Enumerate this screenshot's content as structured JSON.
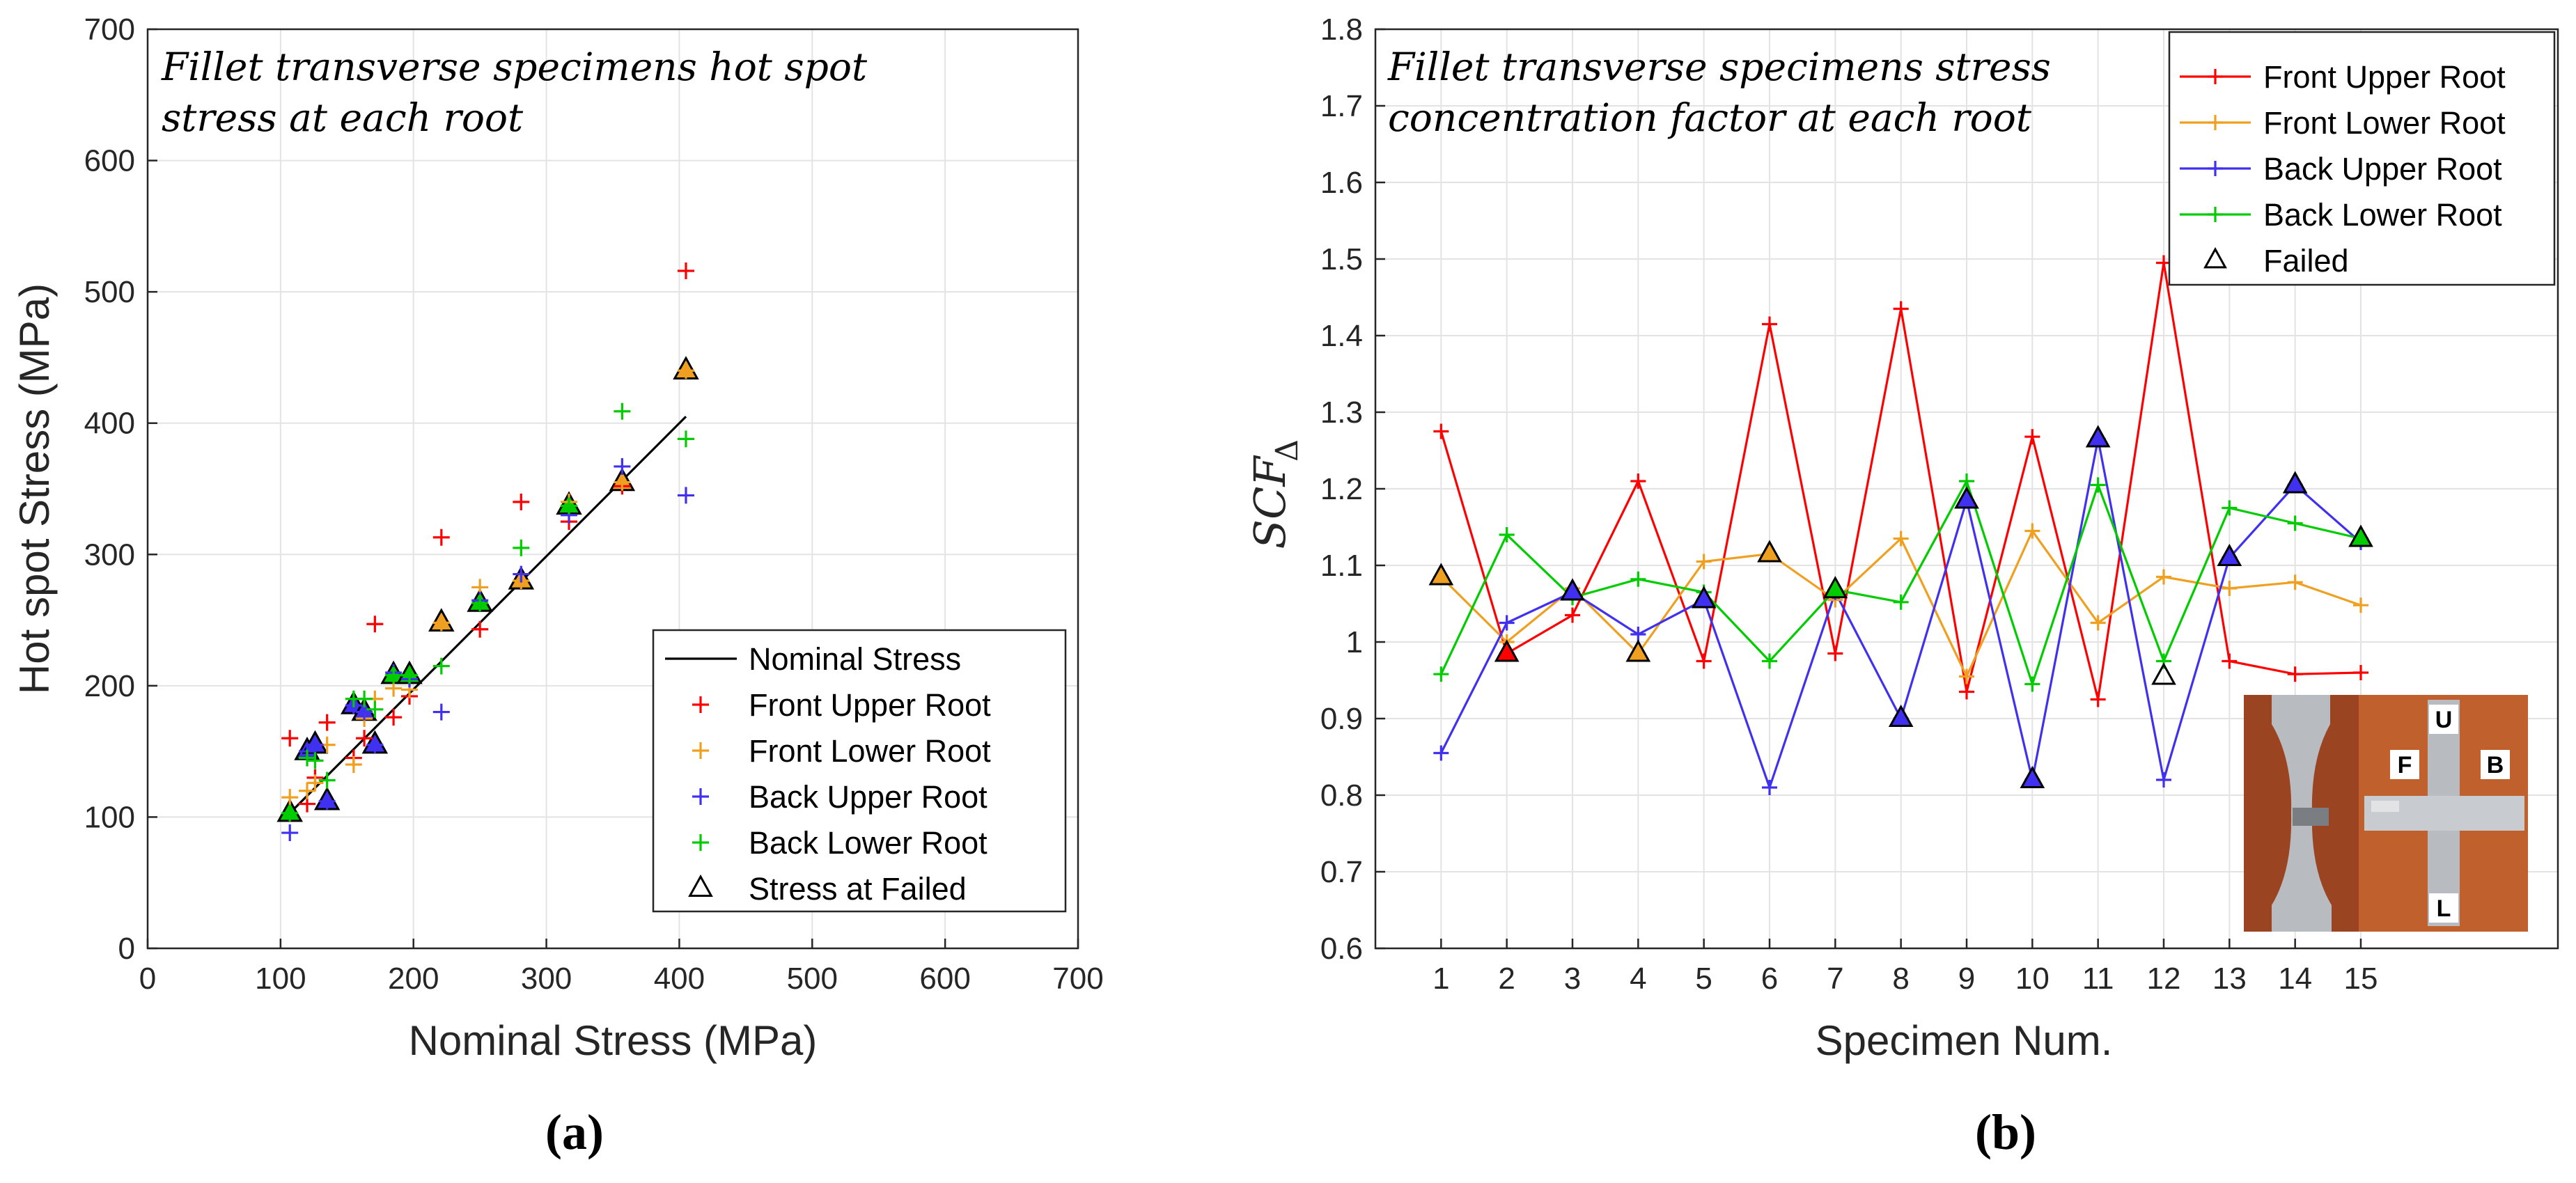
{
  "chart_data": [
    {
      "id": "a",
      "type": "scatter",
      "caption": "(a)",
      "title_lines": [
        "Fillet transverse specimens hot spot",
        "stress at each root"
      ],
      "xlabel": "Nominal Stress (MPa)",
      "ylabel": "Hot spot Stress (MPa)",
      "xlim": [
        0,
        700
      ],
      "ylim": [
        0,
        700
      ],
      "xticks": [
        0,
        100,
        200,
        300,
        400,
        500,
        600,
        700
      ],
      "yticks": [
        0,
        100,
        200,
        300,
        400,
        500,
        600,
        700
      ],
      "grid": true,
      "legend_position": "bottom-right",
      "nominal": [
        107,
        120,
        126,
        135,
        155,
        163,
        171,
        185,
        197,
        221,
        250,
        281,
        317,
        357,
        405
      ],
      "line": {
        "name": "Nominal Stress",
        "color": "#000000",
        "x": [
          107,
          405
        ],
        "y": [
          103,
          405
        ]
      },
      "series": [
        {
          "name": "Front Upper Root",
          "color": "#ff0000",
          "marker": "+",
          "x": [
            107,
            120,
            126,
            135,
            155,
            163,
            171,
            185,
            197,
            221,
            250,
            281,
            317,
            357,
            405
          ],
          "y": [
            160,
            110,
            130,
            172,
            145,
            160,
            247,
            176,
            192,
            313,
            243,
            340,
            325,
            352,
            516
          ]
        },
        {
          "name": "Front Lower Root",
          "color": "#f0a020",
          "marker": "+",
          "x": [
            107,
            120,
            126,
            135,
            155,
            163,
            171,
            185,
            197,
            221,
            250,
            281,
            317,
            357,
            405
          ],
          "y": [
            115,
            120,
            126,
            155,
            140,
            175,
            190,
            198,
            197,
            248,
            275,
            280,
            340,
            355,
            440
          ]
        },
        {
          "name": "Back Upper Root",
          "color": "#4030f0",
          "marker": "+",
          "x": [
            107,
            120,
            126,
            135,
            155,
            163,
            171,
            185,
            197,
            221,
            250,
            281,
            317,
            357,
            405
          ],
          "y": [
            88,
            150,
            155,
            112,
            185,
            180,
            155,
            210,
            205,
            180,
            265,
            285,
            330,
            367,
            345
          ]
        },
        {
          "name": "Back Lower Root",
          "color": "#00cc00",
          "marker": "+",
          "x": [
            107,
            120,
            126,
            135,
            155,
            163,
            171,
            185,
            197,
            221,
            250,
            281,
            317,
            357,
            405
          ],
          "y": [
            103,
            145,
            143,
            128,
            190,
            190,
            182,
            208,
            208,
            215,
            263,
            305,
            337,
            409,
            388
          ]
        }
      ],
      "failed": {
        "name": "Stress at Failed",
        "marker": "triangle",
        "points": [
          {
            "x": 107,
            "y": 103,
            "fill": "#00cc00"
          },
          {
            "x": 120,
            "y": 150,
            "fill": "#4030f0"
          },
          {
            "x": 126,
            "y": 155,
            "fill": "#4030f0"
          },
          {
            "x": 135,
            "y": 112,
            "fill": "#4030f0"
          },
          {
            "x": 155,
            "y": 185,
            "fill": "#4030f0"
          },
          {
            "x": 163,
            "y": 180,
            "fill": "#4030f0"
          },
          {
            "x": 171,
            "y": 155,
            "fill": "#4030f0"
          },
          {
            "x": 185,
            "y": 208,
            "fill": "#00cc00"
          },
          {
            "x": 197,
            "y": 208,
            "fill": "#00cc00"
          },
          {
            "x": 221,
            "y": 248,
            "fill": "#f0a020"
          },
          {
            "x": 250,
            "y": 263,
            "fill": "#00cc00"
          },
          {
            "x": 281,
            "y": 280,
            "fill": "#f0a020"
          },
          {
            "x": 317,
            "y": 337,
            "fill": "#00cc00"
          },
          {
            "x": 357,
            "y": 355,
            "fill": "#f0a020"
          },
          {
            "x": 405,
            "y": 440,
            "fill": "#f0a020"
          }
        ]
      }
    },
    {
      "id": "b",
      "type": "line",
      "caption": "(b)",
      "title_lines": [
        "Fillet transverse specimens stress",
        "concentration factor at each root"
      ],
      "xlabel": "Specimen Num.",
      "ylabel_main": "SCF",
      "ylabel_sub": "Δ",
      "ylim": [
        0.6,
        1.8
      ],
      "xlim": [
        0,
        18
      ],
      "xticks": [
        1,
        2,
        3,
        4,
        5,
        6,
        7,
        8,
        9,
        10,
        11,
        12,
        13,
        14,
        15
      ],
      "yticks": [
        0.6,
        0.7,
        0.8,
        0.9,
        1,
        1.1,
        1.2,
        1.3,
        1.4,
        1.5,
        1.6,
        1.7,
        1.8
      ],
      "ytick_labels": [
        "0.6",
        "0.7",
        "0.8",
        "0.9",
        "1",
        "1.1",
        "1.2",
        "1.3",
        "1.4",
        "1.5",
        "1.6",
        "1.7",
        "1.8"
      ],
      "grid": true,
      "legend_position": "top-right",
      "x": [
        1,
        2,
        3,
        4,
        5,
        6,
        7,
        8,
        9,
        10,
        11,
        12,
        13,
        14,
        15
      ],
      "series": [
        {
          "name": "Front Upper Root",
          "color": "#ff0000",
          "values": [
            1.275,
            0.985,
            1.035,
            1.21,
            0.975,
            1.415,
            0.985,
            1.435,
            0.935,
            1.268,
            0.925,
            1.495,
            0.975,
            0.958,
            0.96
          ]
        },
        {
          "name": "Front Lower Root",
          "color": "#f0a020",
          "values": [
            1.085,
            1.0,
            1.07,
            0.985,
            1.105,
            1.115,
            1.055,
            1.135,
            0.955,
            1.145,
            1.025,
            1.085,
            1.07,
            1.078,
            1.048
          ]
        },
        {
          "name": "Back Upper Root",
          "color": "#4030f0",
          "values": [
            0.855,
            1.025,
            1.065,
            1.01,
            1.055,
            0.81,
            1.065,
            0.9,
            1.185,
            0.82,
            1.265,
            0.82,
            1.11,
            1.205,
            1.13
          ]
        },
        {
          "name": "Back Lower Root",
          "color": "#00cc00",
          "values": [
            0.958,
            1.14,
            1.058,
            1.082,
            1.065,
            0.975,
            1.068,
            1.052,
            1.21,
            0.945,
            1.205,
            0.975,
            1.175,
            1.155,
            1.135
          ]
        }
      ],
      "failed": {
        "name": "Failed",
        "marker": "triangle",
        "points": [
          {
            "x": 1,
            "y": 1.085,
            "fill": "#f0a020"
          },
          {
            "x": 2,
            "y": 0.985,
            "fill": "#ff0000"
          },
          {
            "x": 3,
            "y": 1.065,
            "fill": "#4030f0"
          },
          {
            "x": 4,
            "y": 0.985,
            "fill": "#f0a020"
          },
          {
            "x": 5,
            "y": 1.055,
            "fill": "#4030f0"
          },
          {
            "x": 6,
            "y": 1.115,
            "fill": "#f0a020"
          },
          {
            "x": 7,
            "y": 1.068,
            "fill": "#00cc00"
          },
          {
            "x": 8,
            "y": 0.9,
            "fill": "#4030f0"
          },
          {
            "x": 9,
            "y": 1.185,
            "fill": "#4030f0"
          },
          {
            "x": 10,
            "y": 0.82,
            "fill": "#4030f0"
          },
          {
            "x": 11,
            "y": 1.265,
            "fill": "#4030f0"
          },
          {
            "x": 12,
            "y": 0.955,
            "fill": "none"
          },
          {
            "x": 13,
            "y": 1.11,
            "fill": "#4030f0"
          },
          {
            "x": 14,
            "y": 1.205,
            "fill": "#4030f0"
          },
          {
            "x": 15,
            "y": 1.135,
            "fill": "#00cc00"
          }
        ]
      },
      "inset_photo": {
        "labels": [
          "U",
          "F",
          "B",
          "L"
        ],
        "wood_color": "#c0602c",
        "metal_color": "#b8bcc0"
      }
    }
  ]
}
